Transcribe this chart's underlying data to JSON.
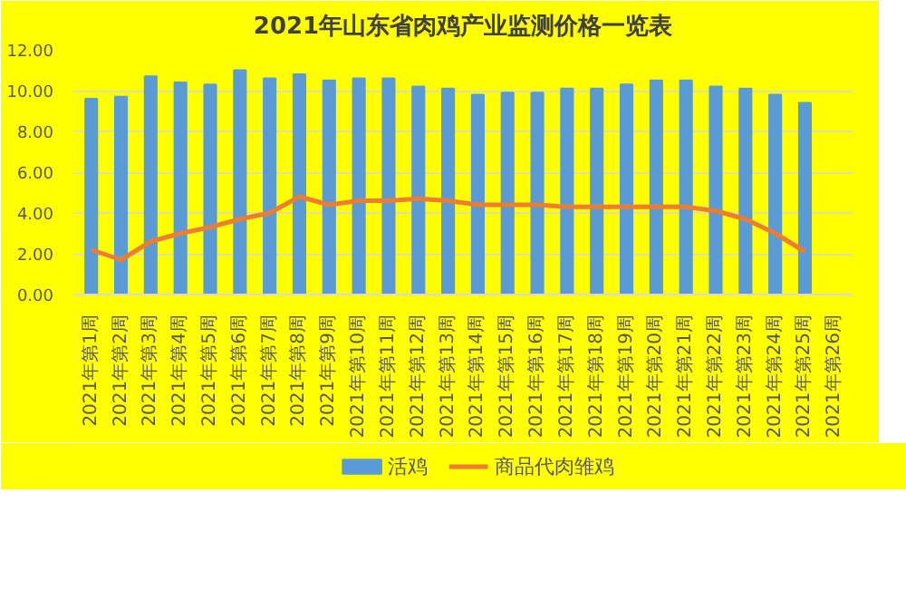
{
  "chart_data": {
    "type": "bar",
    "title": "2021年山东省肉鸡产业监测价格一览表",
    "categories": [
      "2021年第1周",
      "2021年第2周",
      "2021年第3周",
      "2021年第4周",
      "2021年第5周",
      "2021年第6周",
      "2021年第7周",
      "2021年第8周",
      "2021年第9周",
      "2021年第10周",
      "2021年第11周",
      "2021年第12周",
      "2021年第13周",
      "2021年第14周",
      "2021年第15周",
      "2021年第16周",
      "2021年第17周",
      "2021年第18周",
      "2021年第19周",
      "2021年第20周",
      "2021年第21周",
      "2021年第22周",
      "2021年第23周",
      "2021年第24周",
      "2021年第25周",
      "2021年第26周"
    ],
    "series": [
      {
        "name": "活鸡",
        "color": "#5b9bd5",
        "values": [
          9.6,
          9.7,
          10.7,
          10.4,
          10.3,
          11.0,
          10.6,
          10.8,
          10.5,
          10.6,
          10.6,
          10.2,
          10.1,
          9.8,
          9.9,
          9.9,
          10.1,
          10.1,
          10.3,
          10.5,
          10.5,
          10.2,
          10.1,
          9.8,
          9.4,
          null
        ]
      },
      {
        "name": "商品代肉雏鸡",
        "type": "line",
        "color": "#ed7d31",
        "values": [
          2.2,
          1.7,
          2.6,
          3.0,
          3.3,
          3.7,
          4.0,
          4.8,
          4.4,
          4.6,
          4.6,
          4.7,
          4.6,
          4.4,
          4.4,
          4.4,
          4.3,
          4.3,
          4.3,
          4.3,
          4.3,
          4.1,
          3.7,
          3.0,
          2.1,
          null
        ]
      }
    ],
    "ylim": [
      0,
      12
    ],
    "yticks": [
      {
        "value": 0,
        "label": "0.00"
      },
      {
        "value": 2,
        "label": "2.00"
      },
      {
        "value": 4,
        "label": "4.00"
      },
      {
        "value": 6,
        "label": "6.00"
      },
      {
        "value": 8,
        "label": "8.00"
      },
      {
        "value": 10,
        "label": "10.00"
      },
      {
        "value": 12,
        "label": "12.00"
      }
    ],
    "grid": "y",
    "legend": "bottom",
    "marker": "none",
    "line_style": "solid"
  }
}
